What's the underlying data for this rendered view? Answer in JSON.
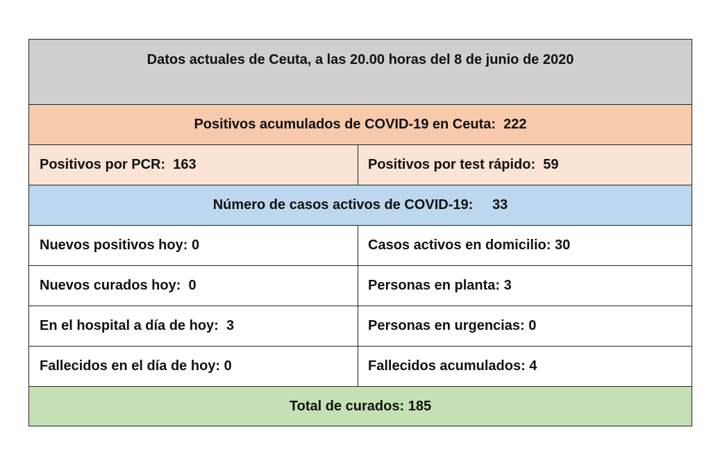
{
  "title": "Datos actuales de Ceuta, a las 20.00 horas del 8 de junio de 2020",
  "positivos_acumulados": {
    "label": "Positivos acumulados de COVID-19 en Ceuta:",
    "value": "222"
  },
  "positivos_pcr": {
    "label": "Positivos por PCR:",
    "value": "163"
  },
  "positivos_test_rapido": {
    "label": "Positivos por test rápido:",
    "value": "59"
  },
  "casos_activos": {
    "label": "Número de casos activos de COVID-19:",
    "value": "33"
  },
  "rows": [
    {
      "left": {
        "label": "Nuevos positivos hoy:",
        "value": "0"
      },
      "right": {
        "label": "Casos activos en domicilio:",
        "value": "30"
      }
    },
    {
      "left": {
        "label": "Nuevos curados hoy:",
        "value": "0"
      },
      "right": {
        "label": "Personas en planta:",
        "value": "3"
      }
    },
    {
      "left": {
        "label": "En el hospital a día de hoy:",
        "value": "3"
      },
      "right": {
        "label": "Personas en urgencias:",
        "value": "0"
      }
    },
    {
      "left": {
        "label": "Fallecidos en el día de hoy:",
        "value": "0"
      },
      "right": {
        "label": "Fallecidos acumulados:",
        "value": "4"
      }
    }
  ],
  "total_curados": {
    "label": "Total de curados:",
    "value": "185"
  }
}
